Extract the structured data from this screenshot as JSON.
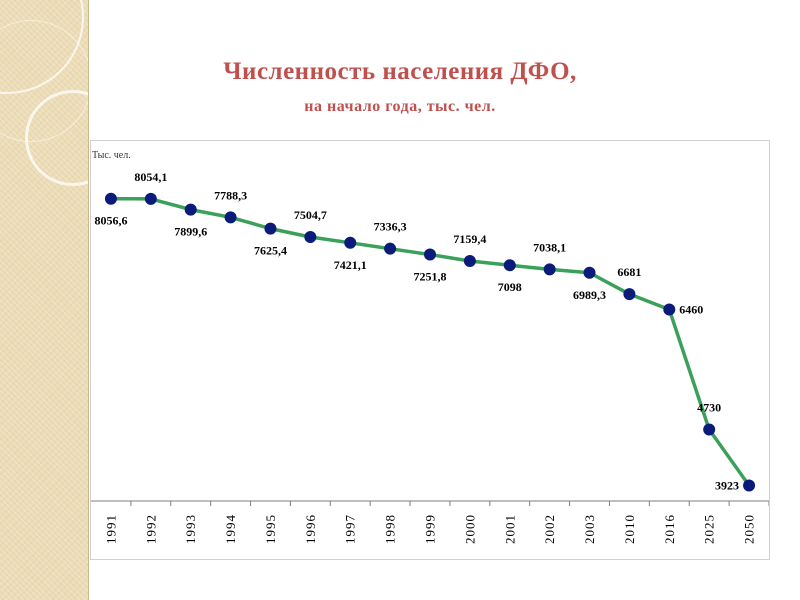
{
  "header": {
    "title": "Численность населения ДФО,",
    "subtitle": "на начало года, тыс. чел."
  },
  "chart_data": {
    "type": "line",
    "unit_label": "Тыс. чел.",
    "categories": [
      "1991",
      "1992",
      "1993",
      "1994",
      "1995",
      "1996",
      "1997",
      "1998",
      "1999",
      "2000",
      "2001",
      "2002",
      "2003",
      "2010",
      "2016",
      "2025",
      "2050"
    ],
    "values": [
      8056.6,
      8054.1,
      7899.6,
      7788.3,
      7625.4,
      7504.7,
      7421.1,
      7336.3,
      7251.8,
      7159.4,
      7098,
      7038.1,
      6989.3,
      6681,
      6460,
      4730,
      3923
    ],
    "data_labels": [
      "8056,6",
      "8054,1",
      "7899,6",
      "7788,3",
      "7625,4",
      "7504,7",
      "7421,1",
      "7336,3",
      "7251,8",
      "7159,4",
      "7098",
      "7038,1",
      "6989,3",
      "6681",
      "6460",
      "4730",
      "3923"
    ],
    "label_position": [
      "below",
      "above",
      "below",
      "above",
      "below",
      "above",
      "below",
      "above",
      "below",
      "above",
      "below",
      "above",
      "below",
      "above",
      "right",
      "above",
      "left"
    ],
    "ylim": [
      3700,
      8600
    ],
    "grid": false,
    "line_color": "#3aa05a",
    "marker_color": "#0a1b7a",
    "title_color": "#c0504d"
  }
}
